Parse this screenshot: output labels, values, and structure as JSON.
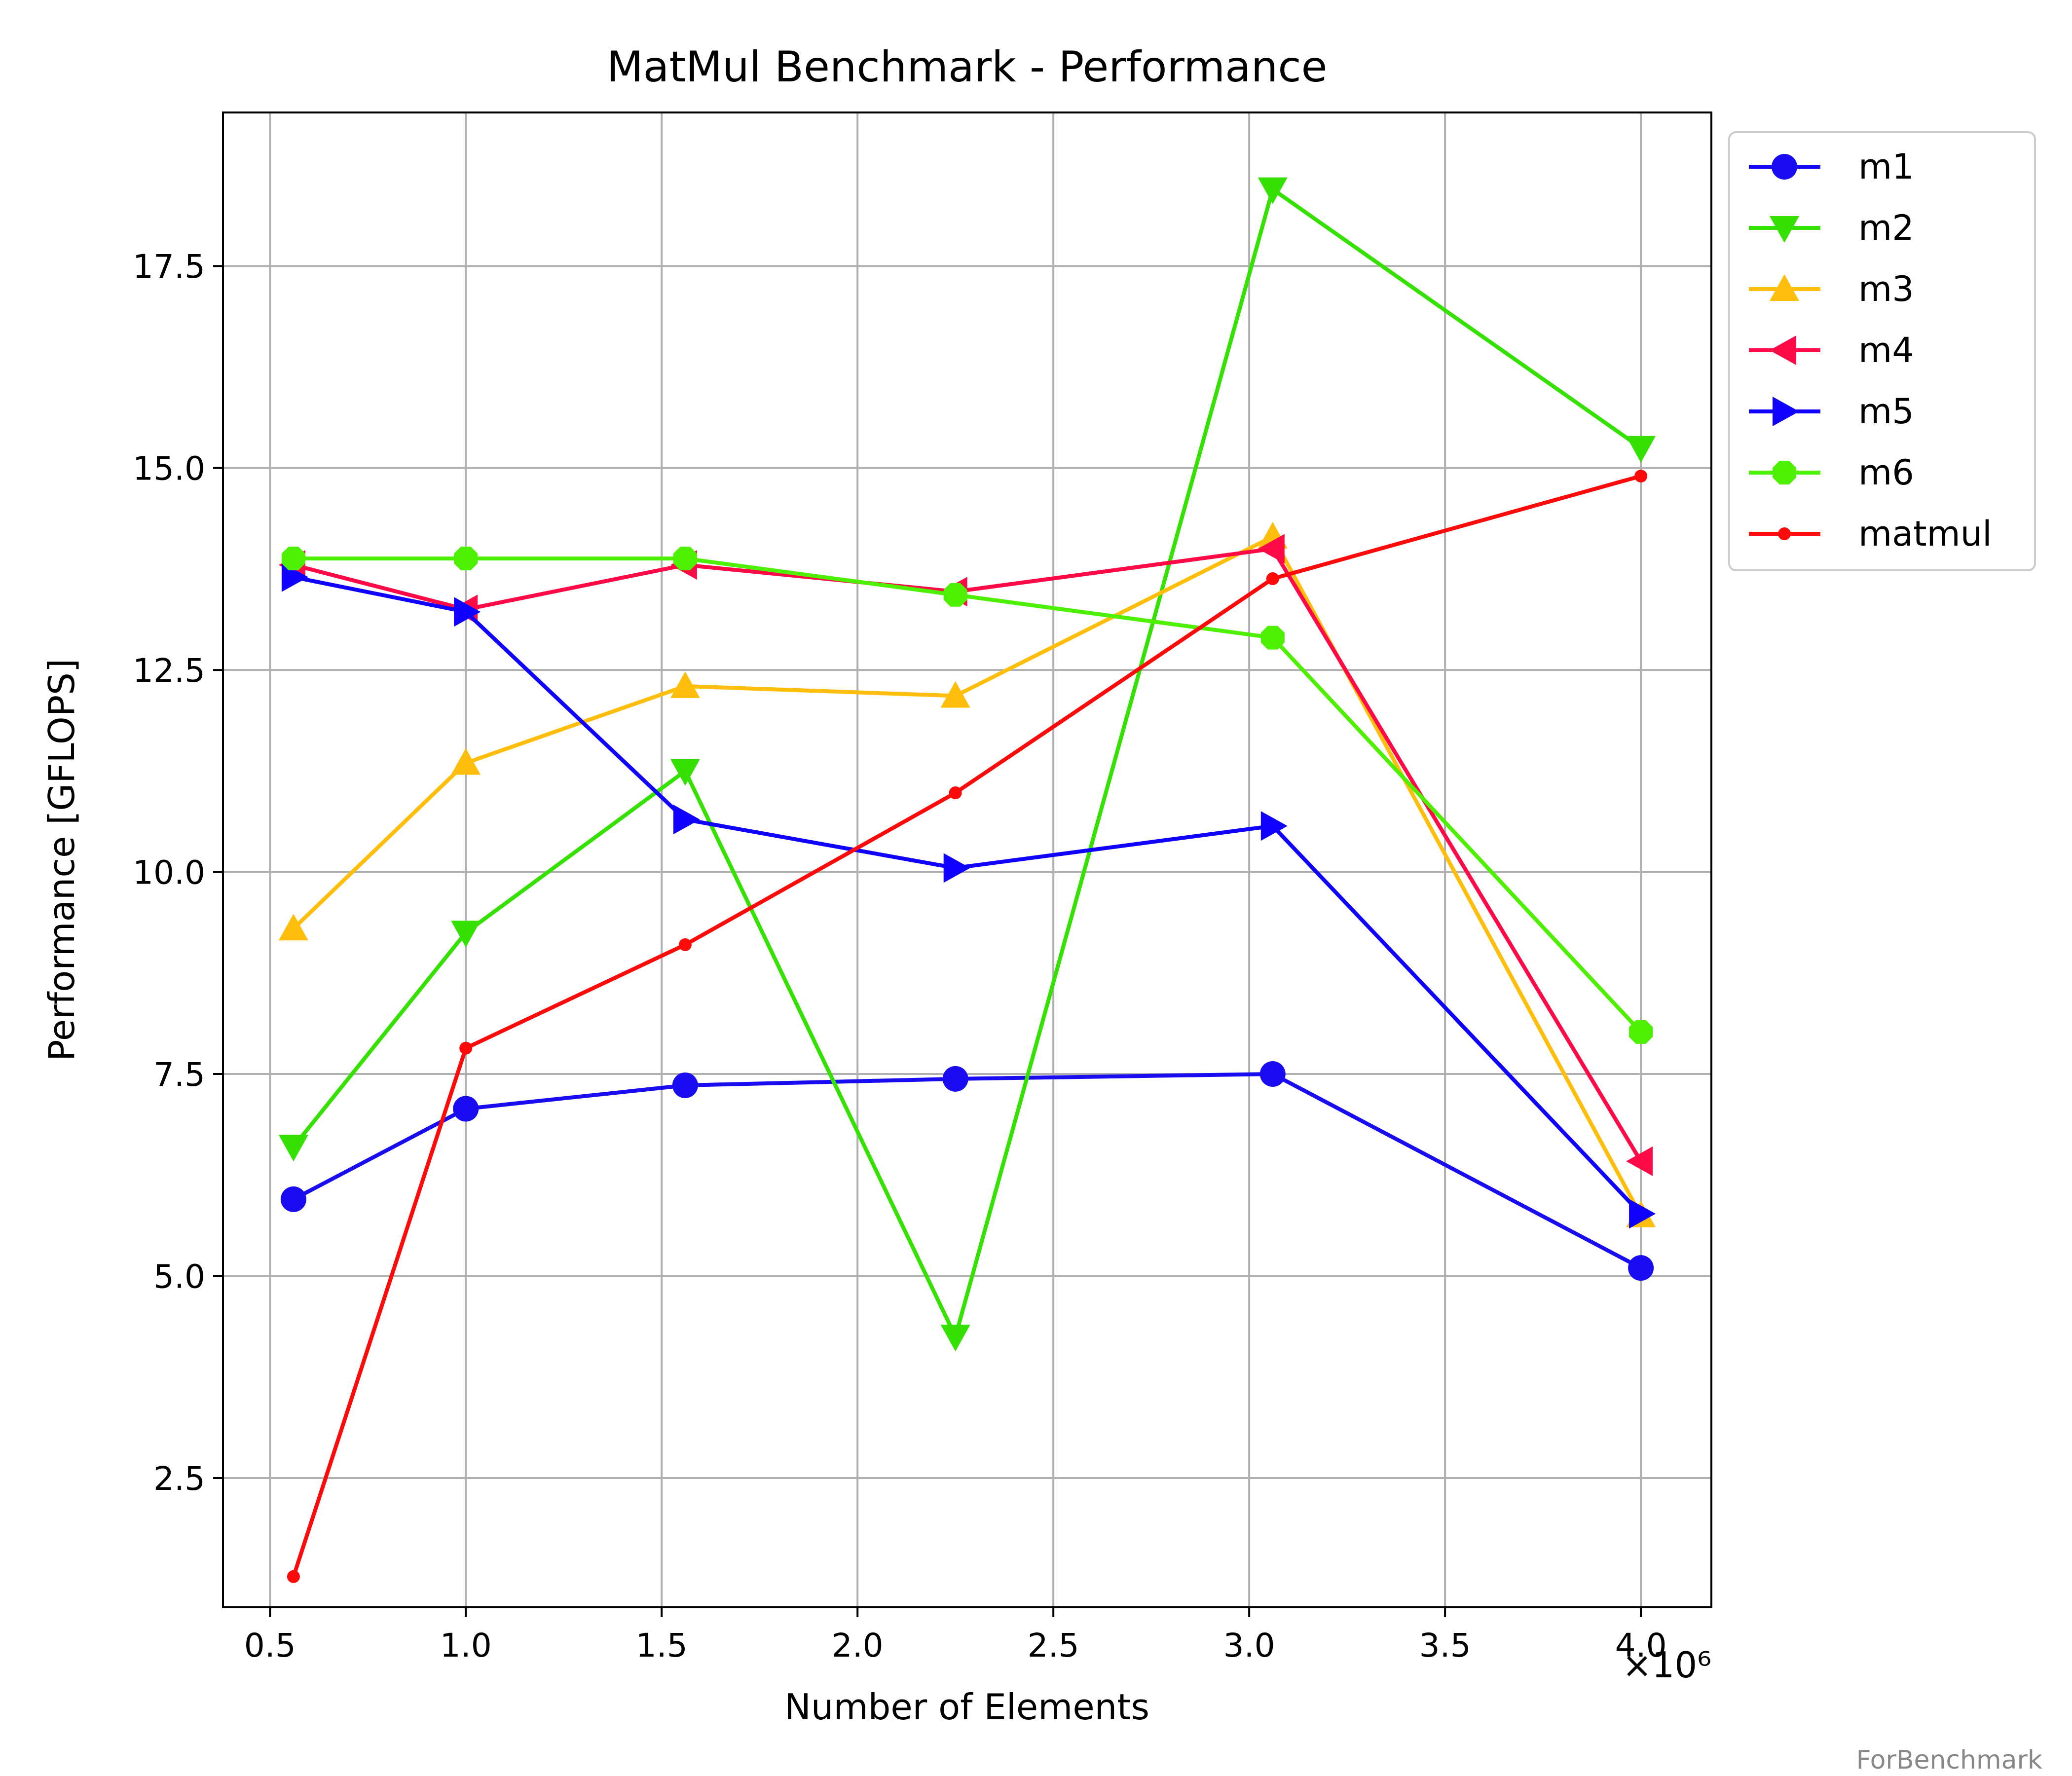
{
  "chart_data": {
    "type": "line",
    "title": "MatMul Benchmark - Performance",
    "xlabel": "Number of Elements",
    "ylabel": "Performance [GFLOPS]",
    "x_multiplier": "×10⁶",
    "x": [
      0.56,
      1.0,
      1.56,
      2.25,
      3.06,
      4.0
    ],
    "xlim": [
      0.38,
      4.18
    ],
    "ylim": [
      0.9,
      19.4
    ],
    "xticks": [
      0.5,
      1.0,
      1.5,
      2.0,
      2.5,
      3.0,
      3.5,
      4.0
    ],
    "xtick_labels": [
      "0.5",
      "1.0",
      "1.5",
      "2.0",
      "2.5",
      "3.0",
      "3.5",
      "4.0"
    ],
    "yticks": [
      2.5,
      5.0,
      7.5,
      10.0,
      12.5,
      15.0,
      17.5
    ],
    "ytick_labels": [
      "2.5",
      "5.0",
      "7.5",
      "10.0",
      "12.5",
      "15.0",
      "17.5"
    ],
    "grid": true,
    "legend_position": "outside-top-right",
    "series": [
      {
        "name": "m1",
        "color": "#1a0cf0",
        "marker": "circle",
        "values": [
          5.95,
          7.07,
          7.36,
          7.44,
          7.5,
          5.1
        ]
      },
      {
        "name": "m2",
        "color": "#34e100",
        "marker": "triangle-down",
        "values": [
          6.6,
          9.25,
          11.25,
          4.25,
          18.45,
          15.25
        ]
      },
      {
        "name": "m3",
        "color": "#ffbe0b",
        "marker": "triangle-up",
        "values": [
          9.3,
          11.35,
          12.3,
          12.18,
          14.15,
          5.75
        ]
      },
      {
        "name": "m4",
        "color": "#ff0a47",
        "marker": "triangle-left",
        "values": [
          13.8,
          13.25,
          13.8,
          13.47,
          14.0,
          6.42
        ]
      },
      {
        "name": "m5",
        "color": "#0f00ff",
        "marker": "triangle-right",
        "values": [
          13.65,
          13.22,
          10.65,
          10.05,
          10.57,
          5.77
        ]
      },
      {
        "name": "m6",
        "color": "#4cf000",
        "marker": "octagon",
        "values": [
          13.88,
          13.88,
          13.88,
          13.43,
          12.9,
          8.02
        ]
      },
      {
        "name": "matmul",
        "color": "#ff0a0a",
        "marker": "point",
        "values": [
          1.28,
          7.82,
          9.1,
          10.98,
          13.63,
          14.9
        ]
      }
    ],
    "watermark": "ForBenchmark"
  }
}
